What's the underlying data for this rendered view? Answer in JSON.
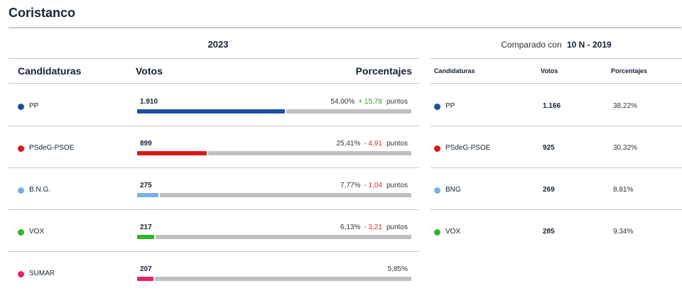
{
  "page": {
    "title": "Coristanco"
  },
  "current": {
    "year": "2023",
    "headers": {
      "party": "Candidaturas",
      "votes": "Votos",
      "percent": "Porcentajes"
    },
    "rows": [
      {
        "party": "PP",
        "color": "#1e4fa0",
        "votes": "1.910",
        "percent": "54,00%",
        "share": 54.0,
        "delta": "+ 15,78",
        "delta_sign": "pos",
        "unit": "puntos"
      },
      {
        "party": "PSdeG-PSOE",
        "color": "#d7191c",
        "votes": "899",
        "percent": "25,41%",
        "share": 25.41,
        "delta": "- 4,91",
        "delta_sign": "neg",
        "unit": "puntos"
      },
      {
        "party": "B.N.G.",
        "color": "#76b2e6",
        "votes": "275",
        "percent": "7,77%",
        "share": 7.77,
        "delta": "- 1,04",
        "delta_sign": "neg",
        "unit": "puntos"
      },
      {
        "party": "VOX",
        "color": "#2bb52b",
        "votes": "217",
        "percent": "6,13%",
        "share": 6.13,
        "delta": "- 3,21",
        "delta_sign": "neg",
        "unit": "puntos"
      },
      {
        "party": "SUMAR",
        "color": "#e6245e",
        "votes": "207",
        "percent": "5,85%",
        "share": 5.85,
        "delta": "",
        "delta_sign": "",
        "unit": ""
      }
    ]
  },
  "comparison": {
    "label": "Comparado con",
    "election": "10 N - 2019",
    "headers": {
      "party": "Candidaturas",
      "votes": "Votos",
      "percent": "Porcentajes"
    },
    "rows": [
      {
        "party": "PP",
        "color": "#1e4fa0",
        "votes": "1.166",
        "percent": "38,22%"
      },
      {
        "party": "PSdeG-PSOE",
        "color": "#d7191c",
        "votes": "925",
        "percent": "30,32%"
      },
      {
        "party": "BNG",
        "color": "#76b2e6",
        "votes": "269",
        "percent": "8,81%"
      },
      {
        "party": "VOX",
        "color": "#2bb52b",
        "votes": "285",
        "percent": "9,34%"
      }
    ]
  }
}
